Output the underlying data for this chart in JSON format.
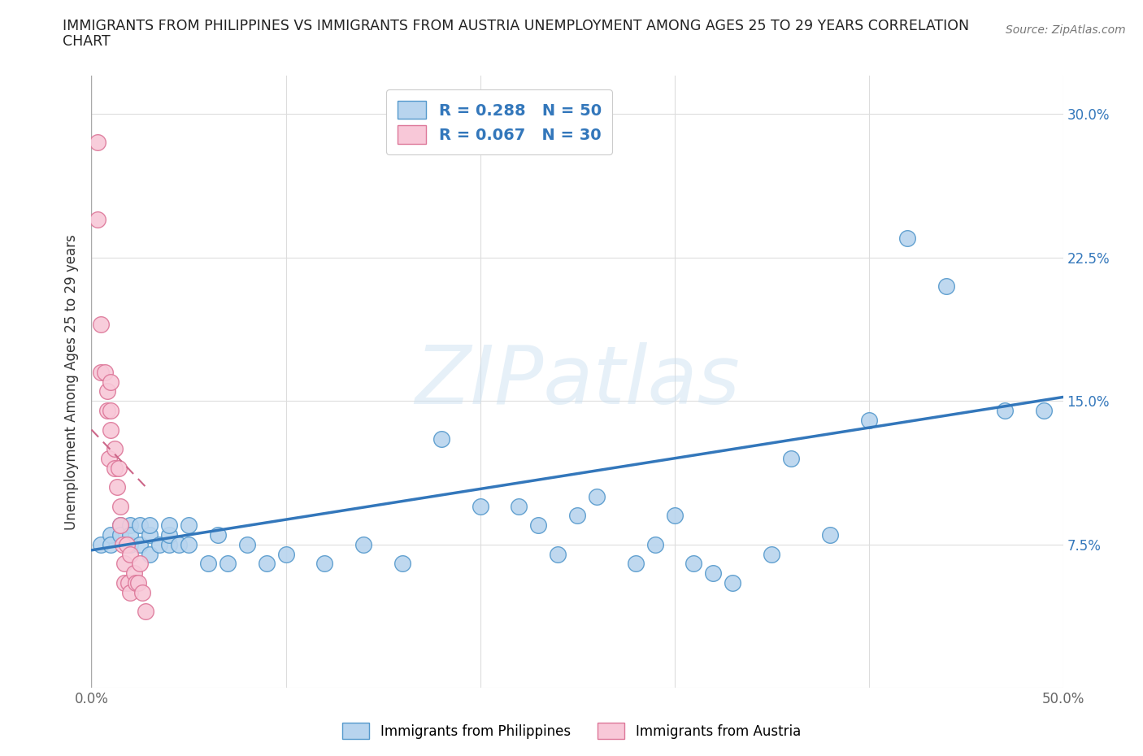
{
  "title_line1": "IMMIGRANTS FROM PHILIPPINES VS IMMIGRANTS FROM AUSTRIA UNEMPLOYMENT AMONG AGES 25 TO 29 YEARS CORRELATION",
  "title_line2": "CHART",
  "source": "Source: ZipAtlas.com",
  "ylabel": "Unemployment Among Ages 25 to 29 years",
  "xlim": [
    0.0,
    0.5
  ],
  "ylim": [
    0.0,
    0.32
  ],
  "xticks": [
    0.0,
    0.1,
    0.2,
    0.3,
    0.4,
    0.5
  ],
  "yticks": [
    0.0,
    0.075,
    0.15,
    0.225,
    0.3
  ],
  "xticklabels": [
    "0.0%",
    "",
    "",
    "",
    "",
    "50.0%"
  ],
  "yticklabels_left": [
    "",
    "",
    "",
    "",
    ""
  ],
  "yticklabels_right": [
    "",
    "7.5%",
    "15.0%",
    "22.5%",
    "30.0%"
  ],
  "background_color": "#ffffff",
  "legend_R_blue": "R = 0.288",
  "legend_N_blue": "N = 50",
  "legend_R_pink": "R = 0.067",
  "legend_N_pink": "N = 30",
  "blue_fill": "#b8d4ee",
  "pink_fill": "#f8c8d8",
  "blue_edge": "#5599cc",
  "pink_edge": "#dd7799",
  "blue_line": "#3377bb",
  "pink_line": "#cc6688",
  "grid_color": "#dddddd",
  "philippines_x": [
    0.005,
    0.01,
    0.01,
    0.015,
    0.015,
    0.02,
    0.02,
    0.02,
    0.025,
    0.025,
    0.03,
    0.03,
    0.03,
    0.035,
    0.04,
    0.04,
    0.04,
    0.045,
    0.05,
    0.05,
    0.06,
    0.065,
    0.07,
    0.08,
    0.09,
    0.1,
    0.12,
    0.14,
    0.16,
    0.18,
    0.2,
    0.22,
    0.23,
    0.24,
    0.25,
    0.26,
    0.28,
    0.29,
    0.3,
    0.31,
    0.32,
    0.33,
    0.35,
    0.36,
    0.38,
    0.4,
    0.42,
    0.44,
    0.47,
    0.49
  ],
  "philippines_y": [
    0.075,
    0.08,
    0.075,
    0.085,
    0.08,
    0.075,
    0.085,
    0.08,
    0.075,
    0.085,
    0.07,
    0.08,
    0.085,
    0.075,
    0.075,
    0.08,
    0.085,
    0.075,
    0.075,
    0.085,
    0.065,
    0.08,
    0.065,
    0.075,
    0.065,
    0.07,
    0.065,
    0.075,
    0.065,
    0.13,
    0.095,
    0.095,
    0.085,
    0.07,
    0.09,
    0.1,
    0.065,
    0.075,
    0.09,
    0.065,
    0.06,
    0.055,
    0.07,
    0.12,
    0.08,
    0.14,
    0.235,
    0.21,
    0.145,
    0.145
  ],
  "austria_x": [
    0.003,
    0.003,
    0.005,
    0.005,
    0.007,
    0.008,
    0.008,
    0.009,
    0.01,
    0.01,
    0.01,
    0.012,
    0.012,
    0.013,
    0.014,
    0.015,
    0.015,
    0.016,
    0.017,
    0.017,
    0.018,
    0.019,
    0.02,
    0.02,
    0.022,
    0.023,
    0.024,
    0.025,
    0.026,
    0.028
  ],
  "austria_y": [
    0.285,
    0.245,
    0.19,
    0.165,
    0.165,
    0.155,
    0.145,
    0.12,
    0.16,
    0.145,
    0.135,
    0.125,
    0.115,
    0.105,
    0.115,
    0.095,
    0.085,
    0.075,
    0.065,
    0.055,
    0.075,
    0.055,
    0.05,
    0.07,
    0.06,
    0.055,
    0.055,
    0.065,
    0.05,
    0.04
  ],
  "blue_trend_x": [
    0.0,
    0.5
  ],
  "blue_trend_y": [
    0.072,
    0.152
  ],
  "pink_trend_x": [
    0.0,
    0.028
  ],
  "pink_trend_y": [
    0.135,
    0.105
  ]
}
